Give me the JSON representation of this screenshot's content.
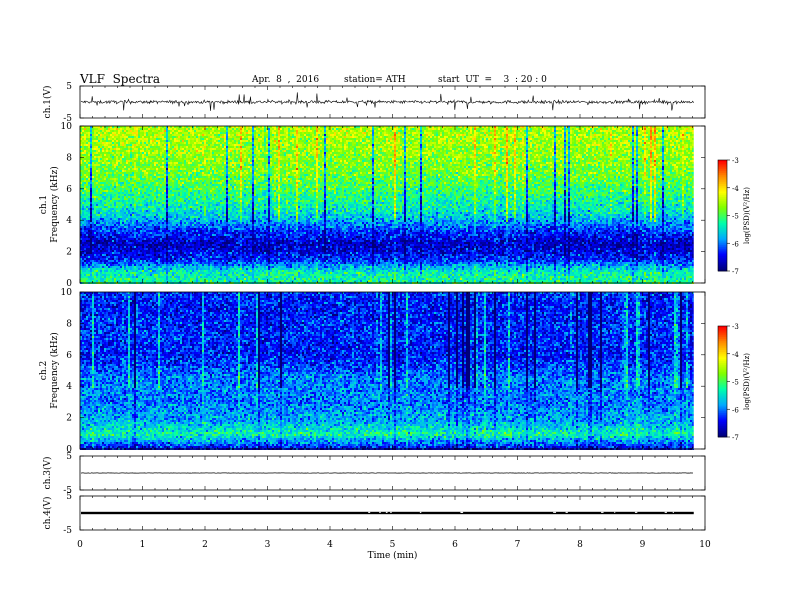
{
  "header": {
    "title": "VLF  Spectra",
    "date": "Apr.  8  ,  2016",
    "station": "station= ATH",
    "start_ut": "start  UT  =    3  : 20 : 0"
  },
  "chart_data": [
    {
      "type": "line",
      "panel": "ch1-waveform",
      "ylabel": "ch.1(V)",
      "ylim": [
        -5,
        5
      ],
      "yticks": [
        "5",
        "-5"
      ],
      "xlim": [
        0,
        10
      ],
      "data_x_range": [
        0,
        9.82
      ],
      "description_values": {
        "baseline_v": 0.0,
        "noise_amplitude_v": 0.8,
        "spike_amplitude_v": 2.6
      }
    },
    {
      "type": "heatmap",
      "panel": "ch1-spectrogram",
      "ylabel_channel": "ch.1",
      "ylabel": "Frequency  (kHz)",
      "ylim": [
        0,
        10
      ],
      "yticks": [
        "0",
        "2",
        "4",
        "6",
        "8",
        "10"
      ],
      "xlim": [
        0,
        10
      ],
      "data_x_range": [
        0,
        9.82
      ],
      "colorbar": {
        "label": "log(PSD)(V²/Hz)",
        "range": [
          -7,
          -3
        ],
        "ticks": [
          "-3",
          "-4",
          "-5",
          "-6",
          "-7"
        ]
      },
      "band_profile_khz_logpsd": [
        [
          0,
          -5.2
        ],
        [
          0.8,
          -5.4
        ],
        [
          1.5,
          -6.3
        ],
        [
          2.5,
          -6.7
        ],
        [
          3.5,
          -6.2
        ],
        [
          4.5,
          -5.5
        ],
        [
          5.5,
          -5.2
        ],
        [
          7,
          -4.8
        ],
        [
          8.5,
          -4.6
        ],
        [
          10,
          -4.5
        ]
      ]
    },
    {
      "type": "heatmap",
      "panel": "ch2-spectrogram",
      "ylabel_channel": "ch.2",
      "ylabel": "Frequency  (kHz)",
      "ylim": [
        0,
        10
      ],
      "yticks": [
        "0",
        "2",
        "4",
        "6",
        "8",
        "10"
      ],
      "xlim": [
        0,
        10
      ],
      "data_x_range": [
        0,
        9.82
      ],
      "colorbar": {
        "label": "log(PSD)(V²/Hz)",
        "range": [
          -7,
          -3
        ],
        "ticks": [
          "-3",
          "-4",
          "-5",
          "-6",
          "-7"
        ]
      },
      "band_profile_khz_logpsd": [
        [
          0,
          -6.6
        ],
        [
          1,
          -5.3
        ],
        [
          1.8,
          -5.8
        ],
        [
          3,
          -6.0
        ],
        [
          4.5,
          -6.0
        ],
        [
          6,
          -6.4
        ],
        [
          7.5,
          -6.3
        ],
        [
          9,
          -6.4
        ],
        [
          10,
          -6.3
        ]
      ]
    },
    {
      "type": "line",
      "panel": "ch3-waveform",
      "ylabel": "ch.3(V)",
      "ylim": [
        -5,
        5
      ],
      "yticks": [
        "5",
        "-5"
      ],
      "xlim": [
        0,
        10
      ],
      "data_x_range": [
        0,
        9.82
      ],
      "description_values": {
        "baseline_v": 0.0,
        "noise_amplitude_v": 0.05
      }
    },
    {
      "type": "line",
      "panel": "ch4-waveform",
      "ylabel": "ch.4(V)",
      "ylim": [
        -5,
        5
      ],
      "yticks": [
        "5",
        "-5"
      ],
      "xlabel": "Time  (min)",
      "xlim": [
        0,
        10
      ],
      "xticks": [
        "0",
        "1",
        "2",
        "3",
        "4",
        "5",
        "6",
        "7",
        "8",
        "9",
        "10"
      ],
      "data_x_range": [
        0,
        9.82
      ],
      "description_values": {
        "baseline_v": 0.0,
        "band_halfwidth_v": 0.35
      }
    }
  ],
  "colors": {
    "colormap": [
      "#00007a",
      "#0000ff",
      "#00aaff",
      "#00ffaa",
      "#7fff00",
      "#ffff00",
      "#ff8c00",
      "#ff0000",
      "#ffffff"
    ],
    "axis": "#000000"
  }
}
